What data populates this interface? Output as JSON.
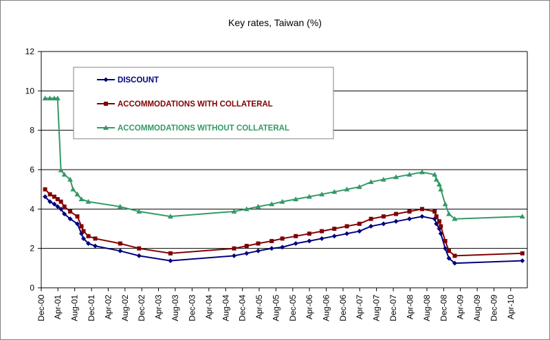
{
  "chart_data": {
    "type": "line",
    "title": "Key rates, Taiwan (%)",
    "xlabel": "",
    "ylabel": "",
    "ylim": [
      0,
      12
    ],
    "yticks": [
      0,
      2,
      4,
      6,
      8,
      10,
      12
    ],
    "grid": "horizontal",
    "legend_position": "top-left",
    "x_tick_labels": [
      "Dec-00",
      "Apr-01",
      "Aug-01",
      "Dec-01",
      "Apr-02",
      "Aug-02",
      "Dec-02",
      "Apr-03",
      "Aug-03",
      "Dec-03",
      "Apr-04",
      "Aug-04",
      "Dec-04",
      "Apr-05",
      "Aug-05",
      "Dec-05",
      "Apr-06",
      "Aug-06",
      "Dec-06",
      "Apr-07",
      "Aug-07",
      "Dec-07",
      "Apr-08",
      "Aug-08",
      "Dec-08",
      "Apr-09",
      "Aug-09",
      "Dec-09",
      "Apr-10"
    ],
    "series": [
      {
        "name": "DISCOUNT",
        "color": "#000080",
        "marker": "diamond",
        "points": [
          [
            "2000-12-29",
            4.625
          ],
          [
            "2001-02-02",
            4.375
          ],
          [
            "2001-03-06",
            4.25
          ],
          [
            "2001-03-30",
            4.125
          ],
          [
            "2001-04-23",
            4.0
          ],
          [
            "2001-05-18",
            3.75
          ],
          [
            "2001-06-29",
            3.5
          ],
          [
            "2001-08-20",
            3.25
          ],
          [
            "2001-09-19",
            2.75
          ],
          [
            "2001-10-04",
            2.5
          ],
          [
            "2001-11-08",
            2.25
          ],
          [
            "2001-12-28",
            2.125
          ],
          [
            "2002-06-27",
            1.875
          ],
          [
            "2002-11-11",
            1.625
          ],
          [
            "2003-06-27",
            1.375
          ],
          [
            "2004-10-01",
            1.625
          ],
          [
            "2004-12-31",
            1.75
          ],
          [
            "2005-03-25",
            1.875
          ],
          [
            "2005-07-01",
            2.0
          ],
          [
            "2005-09-16",
            2.0625
          ],
          [
            "2005-12-23",
            2.25
          ],
          [
            "2006-03-31",
            2.375
          ],
          [
            "2006-06-30",
            2.5
          ],
          [
            "2006-09-29",
            2.625
          ],
          [
            "2006-12-29",
            2.75
          ],
          [
            "2007-03-30",
            2.875
          ],
          [
            "2007-06-22",
            3.125
          ],
          [
            "2007-09-21",
            3.25
          ],
          [
            "2007-12-21",
            3.375
          ],
          [
            "2008-03-27",
            3.5
          ],
          [
            "2008-06-27",
            3.625
          ],
          [
            "2008-09-26",
            3.5
          ],
          [
            "2008-10-09",
            3.25
          ],
          [
            "2008-10-30",
            3.0
          ],
          [
            "2008-11-10",
            2.75
          ],
          [
            "2008-12-12",
            2.0
          ],
          [
            "2009-01-08",
            1.5
          ],
          [
            "2009-02-19",
            1.25
          ],
          [
            "2010-06-25",
            1.375
          ]
        ]
      },
      {
        "name": "ACCOMMODATIONS WITH COLLATERAL",
        "color": "#800000",
        "marker": "square",
        "points": [
          [
            "2000-12-29",
            5.0
          ],
          [
            "2001-02-02",
            4.75
          ],
          [
            "2001-03-06",
            4.625
          ],
          [
            "2001-03-30",
            4.5
          ],
          [
            "2001-04-23",
            4.375
          ],
          [
            "2001-05-18",
            4.125
          ],
          [
            "2001-06-29",
            3.875
          ],
          [
            "2001-08-20",
            3.625
          ],
          [
            "2001-09-19",
            3.125
          ],
          [
            "2001-10-04",
            2.875
          ],
          [
            "2001-11-08",
            2.625
          ],
          [
            "2001-12-28",
            2.5
          ],
          [
            "2002-06-27",
            2.25
          ],
          [
            "2002-11-11",
            2.0
          ],
          [
            "2003-06-27",
            1.75
          ],
          [
            "2004-10-01",
            2.0
          ],
          [
            "2004-12-31",
            2.125
          ],
          [
            "2005-03-25",
            2.25
          ],
          [
            "2005-07-01",
            2.375
          ],
          [
            "2005-09-16",
            2.5
          ],
          [
            "2005-12-23",
            2.625
          ],
          [
            "2006-03-31",
            2.75
          ],
          [
            "2006-06-30",
            2.875
          ],
          [
            "2006-09-29",
            3.0
          ],
          [
            "2006-12-29",
            3.125
          ],
          [
            "2007-03-30",
            3.25
          ],
          [
            "2007-06-22",
            3.5
          ],
          [
            "2007-09-21",
            3.625
          ],
          [
            "2007-12-21",
            3.75
          ],
          [
            "2008-03-27",
            3.875
          ],
          [
            "2008-06-27",
            4.0
          ],
          [
            "2008-09-26",
            3.875
          ],
          [
            "2008-10-09",
            3.625
          ],
          [
            "2008-10-30",
            3.375
          ],
          [
            "2008-11-10",
            3.125
          ],
          [
            "2008-12-12",
            2.375
          ],
          [
            "2009-01-08",
            1.875
          ],
          [
            "2009-02-19",
            1.625
          ],
          [
            "2010-06-25",
            1.75
          ]
        ]
      },
      {
        "name": "ACCOMMODATIONS WITHOUT COLLATERAL",
        "color": "#339966",
        "marker": "triangle",
        "points": [
          [
            "2000-12-29",
            9.625
          ],
          [
            "2001-02-02",
            9.625
          ],
          [
            "2001-03-06",
            9.625
          ],
          [
            "2001-03-30",
            9.625
          ],
          [
            "2001-04-23",
            5.975
          ],
          [
            "2001-05-18",
            5.75
          ],
          [
            "2001-06-29",
            5.5
          ],
          [
            "2001-07-20",
            5.0
          ],
          [
            "2001-08-20",
            4.75
          ],
          [
            "2001-09-19",
            4.5
          ],
          [
            "2001-11-08",
            4.375
          ],
          [
            "2002-06-27",
            4.125
          ],
          [
            "2002-11-11",
            3.875
          ],
          [
            "2003-06-27",
            3.625
          ],
          [
            "2004-10-01",
            3.875
          ],
          [
            "2004-12-31",
            4.0
          ],
          [
            "2005-03-25",
            4.125
          ],
          [
            "2005-07-01",
            4.25
          ],
          [
            "2005-09-16",
            4.375
          ],
          [
            "2005-12-23",
            4.5
          ],
          [
            "2006-03-31",
            4.625
          ],
          [
            "2006-06-30",
            4.75
          ],
          [
            "2006-09-29",
            4.875
          ],
          [
            "2006-12-29",
            5.0
          ],
          [
            "2007-03-30",
            5.125
          ],
          [
            "2007-06-22",
            5.375
          ],
          [
            "2007-09-21",
            5.5
          ],
          [
            "2007-12-21",
            5.625
          ],
          [
            "2008-03-27",
            5.75
          ],
          [
            "2008-06-27",
            5.875
          ],
          [
            "2008-09-26",
            5.75
          ],
          [
            "2008-10-09",
            5.5
          ],
          [
            "2008-10-30",
            5.25
          ],
          [
            "2008-11-10",
            5.0
          ],
          [
            "2008-12-12",
            4.25
          ],
          [
            "2009-01-08",
            3.75
          ],
          [
            "2009-02-19",
            3.5
          ],
          [
            "2010-06-25",
            3.625
          ]
        ]
      }
    ]
  }
}
